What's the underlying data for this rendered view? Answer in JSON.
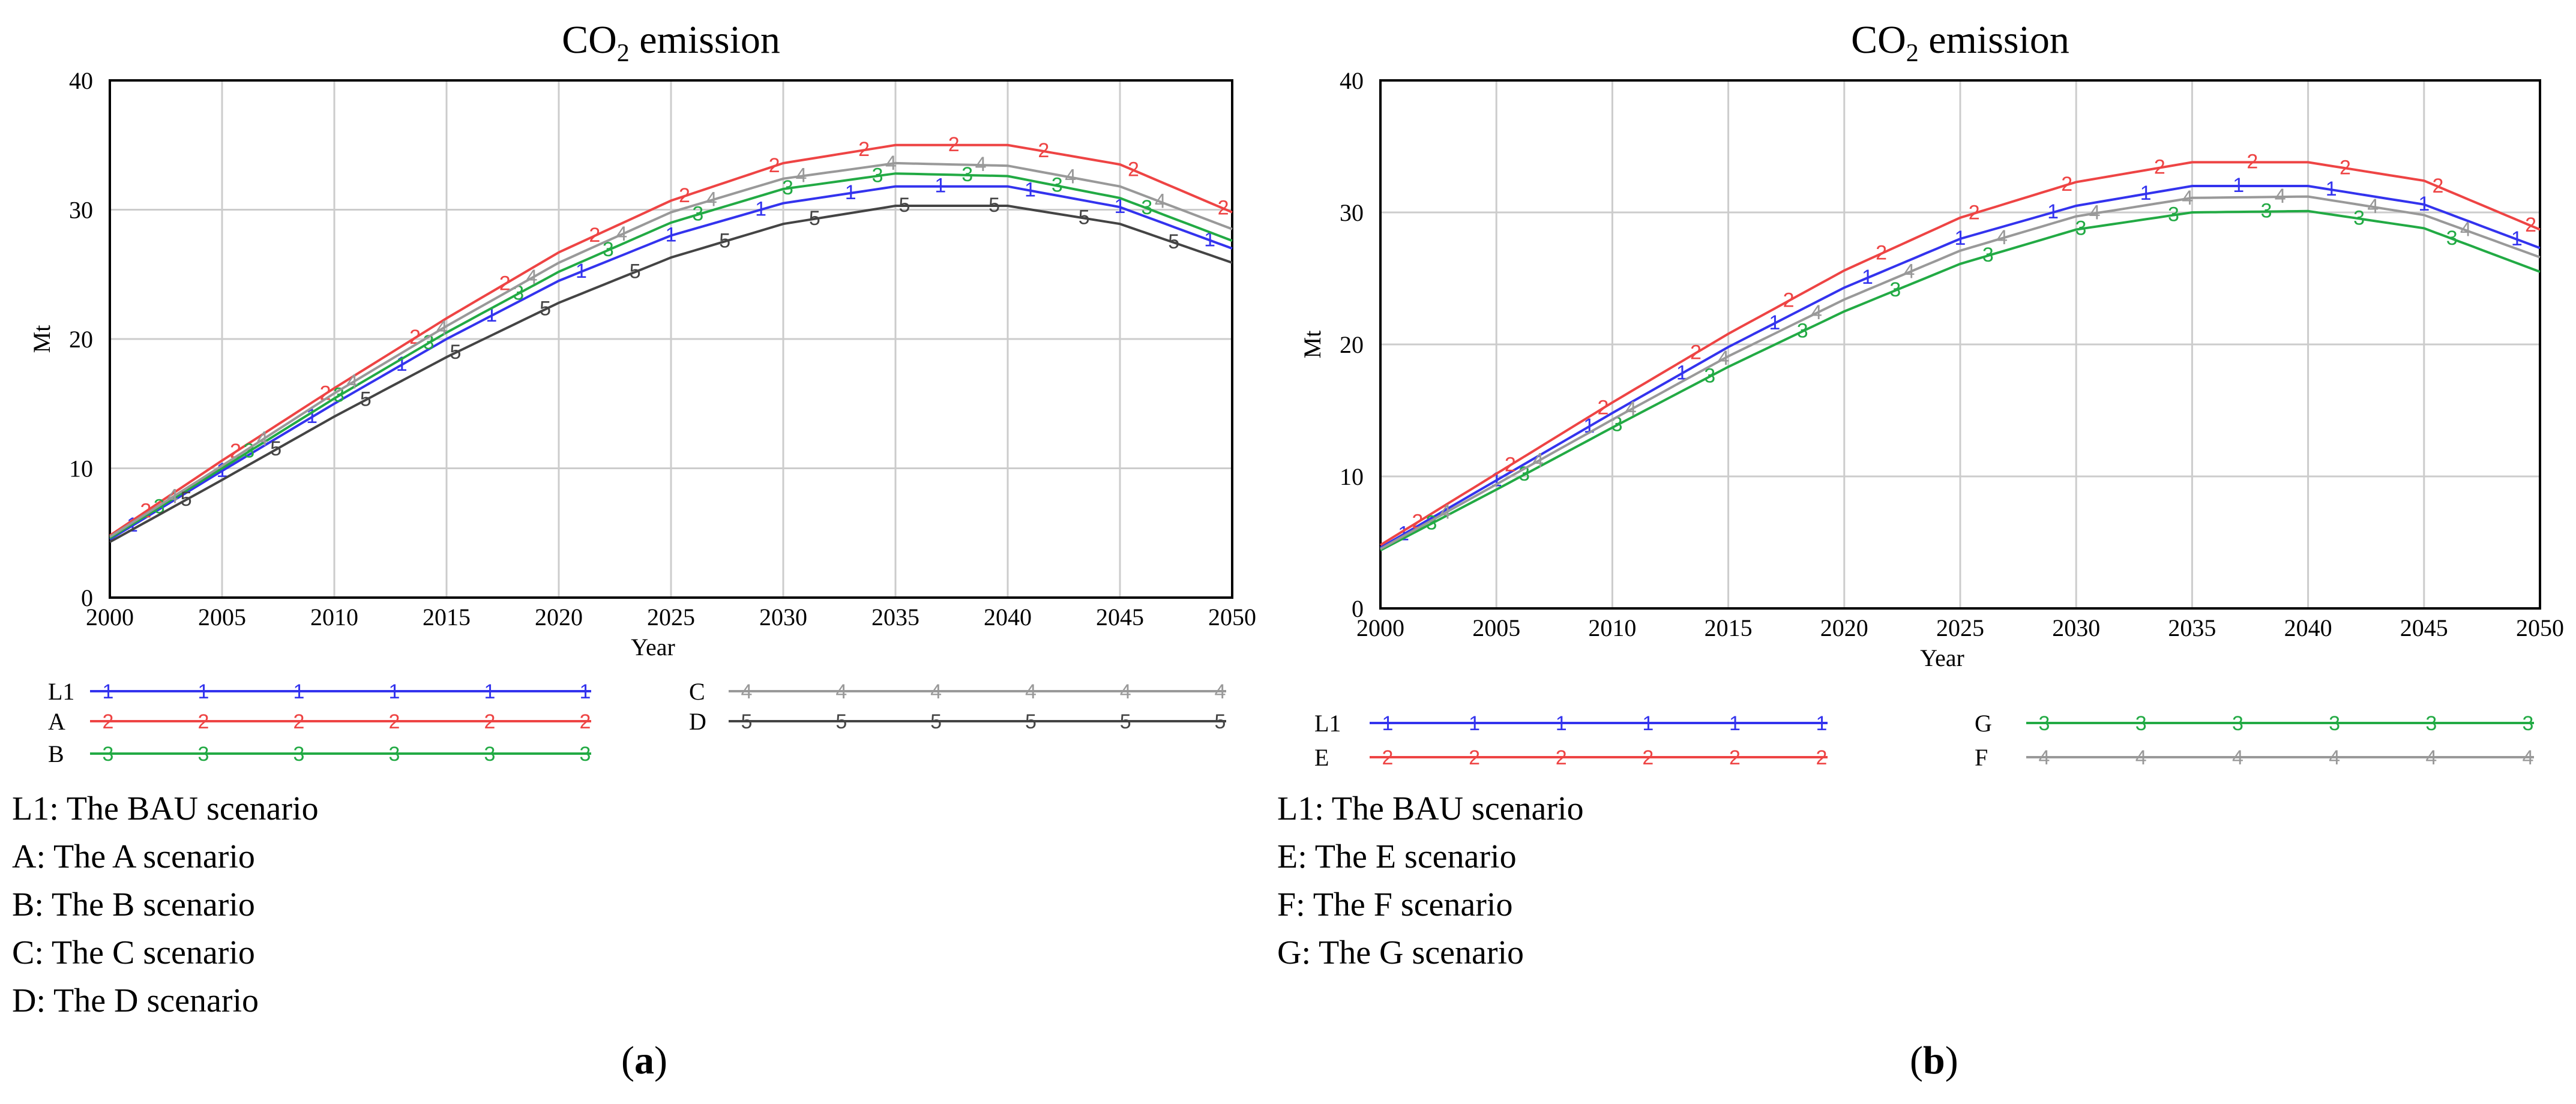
{
  "chart_data": [
    {
      "id": "a",
      "type": "line",
      "title_main": "CO",
      "title_sub": "2",
      "title_rest": " emission",
      "xlabel": "Year",
      "ylabel": "Mt",
      "xlim": [
        2000,
        2050
      ],
      "ylim": [
        0,
        40
      ],
      "xticks": [
        2000,
        2005,
        2010,
        2015,
        2020,
        2025,
        2030,
        2035,
        2040,
        2045,
        2050
      ],
      "yticks": [
        0,
        10,
        20,
        30,
        40
      ],
      "x": [
        2000,
        2005,
        2010,
        2015,
        2020,
        2025,
        2030,
        2035,
        2040,
        2045,
        2050
      ],
      "series": [
        {
          "name": "L1",
          "marker": "1",
          "color": "#3333ee",
          "values": [
            4.5,
            9.8,
            15.0,
            20.0,
            24.5,
            28.0,
            30.5,
            31.8,
            31.8,
            30.2,
            27.0
          ]
        },
        {
          "name": "A",
          "marker": "2",
          "color": "#ee4444",
          "values": [
            4.8,
            10.6,
            16.2,
            21.6,
            26.7,
            30.7,
            33.6,
            35.0,
            35.0,
            33.5,
            29.8
          ]
        },
        {
          "name": "B",
          "marker": "3",
          "color": "#22aa44",
          "values": [
            4.6,
            10.0,
            15.4,
            20.5,
            25.2,
            29.0,
            31.6,
            32.8,
            32.6,
            30.9,
            27.6
          ]
        },
        {
          "name": "C",
          "marker": "4",
          "color": "#999999",
          "values": [
            4.7,
            10.2,
            15.8,
            21.0,
            25.9,
            29.8,
            32.4,
            33.6,
            33.4,
            31.8,
            28.5
          ]
        },
        {
          "name": "D",
          "marker": "5",
          "color": "#444444",
          "values": [
            4.3,
            9.1,
            14.0,
            18.6,
            22.8,
            26.3,
            28.9,
            30.3,
            30.3,
            28.9,
            25.9
          ]
        }
      ],
      "legend_left": [
        {
          "key": "L1",
          "marker": "1",
          "color": "#3333ee"
        },
        {
          "key": "A",
          "marker": "2",
          "color": "#ee4444"
        },
        {
          "key": "B",
          "marker": "3",
          "color": "#22aa44"
        }
      ],
      "legend_right": [
        {
          "key": "C",
          "marker": "4",
          "color": "#999999"
        },
        {
          "key": "D",
          "marker": "5",
          "color": "#444444"
        }
      ],
      "descriptions": [
        "L1: The BAU scenario",
        "A: The A scenario",
        "B: The B scenario",
        "C: The C scenario",
        "D: The D scenario"
      ],
      "panel_label": "a"
    },
    {
      "id": "b",
      "type": "line",
      "title_main": "CO",
      "title_sub": "2",
      "title_rest": " emission",
      "xlabel": "Year",
      "ylabel": "Mt",
      "xlim": [
        2000,
        2050
      ],
      "ylim": [
        0,
        40
      ],
      "xticks": [
        2000,
        2005,
        2010,
        2015,
        2020,
        2025,
        2030,
        2035,
        2040,
        2045,
        2050
      ],
      "yticks": [
        0,
        10,
        20,
        30,
        40
      ],
      "x": [
        2000,
        2005,
        2010,
        2015,
        2020,
        2025,
        2030,
        2035,
        2040,
        2045,
        2050
      ],
      "series": [
        {
          "name": "L1",
          "marker": "1",
          "color": "#3333ee",
          "values": [
            4.6,
            9.7,
            14.8,
            19.8,
            24.3,
            28.0,
            30.5,
            32.0,
            32.0,
            30.6,
            27.3
          ]
        },
        {
          "name": "E",
          "marker": "2",
          "color": "#ee4444",
          "values": [
            4.8,
            10.2,
            15.6,
            20.8,
            25.6,
            29.6,
            32.3,
            33.8,
            33.8,
            32.4,
            28.7
          ]
        },
        {
          "name": "G",
          "marker": "3",
          "color": "#22aa44",
          "values": [
            4.4,
            9.0,
            13.7,
            18.3,
            22.5,
            26.1,
            28.7,
            30.0,
            30.1,
            28.8,
            25.5
          ]
        },
        {
          "name": "F",
          "marker": "4",
          "color": "#999999",
          "values": [
            4.5,
            9.4,
            14.3,
            19.1,
            23.4,
            27.1,
            29.7,
            31.1,
            31.2,
            29.8,
            26.6
          ]
        }
      ],
      "legend_left": [
        {
          "key": "L1",
          "marker": "1",
          "color": "#3333ee"
        },
        {
          "key": "E",
          "marker": "2",
          "color": "#ee4444"
        }
      ],
      "legend_right": [
        {
          "key": "G",
          "marker": "3",
          "color": "#22aa44"
        },
        {
          "key": "F",
          "marker": "4",
          "color": "#999999"
        }
      ],
      "descriptions": [
        "L1: The BAU scenario",
        "E: The E scenario",
        "F: The F scenario",
        "G: The G scenario"
      ],
      "panel_label": "b"
    }
  ]
}
